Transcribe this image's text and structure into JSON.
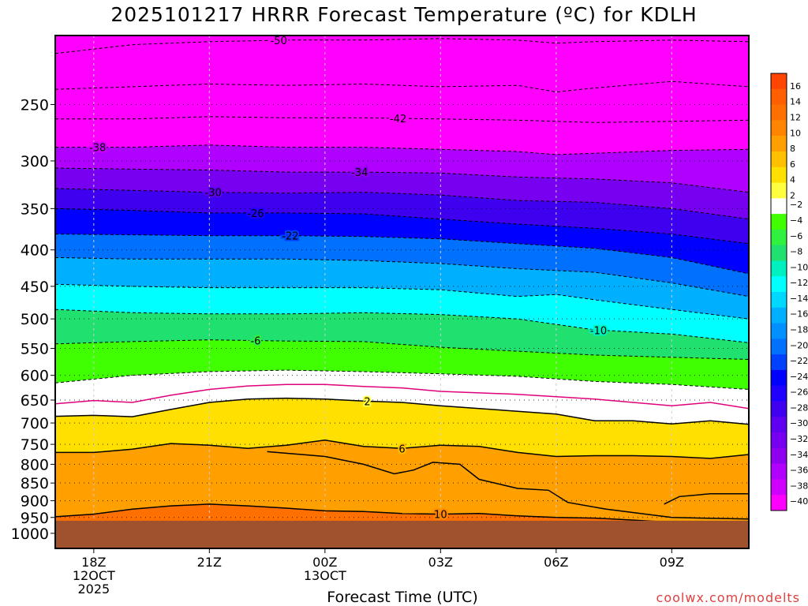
{
  "chart_data": {
    "type": "heatmap",
    "title": "2025101217 HRRR Forecast Temperature (ºC) for KDLH",
    "xlabel": "Forecast Time (UTC)",
    "ylabel": "",
    "credit": "coolwx.com/modelts",
    "x_ticks": [
      {
        "hour": 18,
        "lines": [
          "18Z",
          "12OCT",
          "2025"
        ]
      },
      {
        "hour": 21,
        "lines": [
          "21Z"
        ]
      },
      {
        "hour": 24,
        "lines": [
          "00Z",
          "13OCT"
        ]
      },
      {
        "hour": 27,
        "lines": [
          "03Z"
        ]
      },
      {
        "hour": 30,
        "lines": [
          "06Z"
        ]
      },
      {
        "hour": 33,
        "lines": [
          "09Z"
        ]
      }
    ],
    "xlim": [
      17,
      35
    ],
    "y_scale": "log-pressure",
    "ylim": [
      1000,
      200
    ],
    "y_ticks": [
      250,
      300,
      350,
      400,
      450,
      500,
      550,
      600,
      650,
      700,
      750,
      800,
      850,
      900,
      950,
      1000
    ],
    "colorbar": {
      "labels": [
        16,
        14,
        12,
        10,
        8,
        6,
        4,
        2,
        -2,
        -4,
        -6,
        -8,
        -10,
        -12,
        -14,
        -16,
        -18,
        -20,
        -22,
        -24,
        -26,
        -28,
        -30,
        -32,
        -34,
        -36,
        -38,
        -40
      ],
      "colors": [
        "#ff4500",
        "#ff5f00",
        "#ff7000",
        "#ff8500",
        "#ffa000",
        "#ffc000",
        "#ffe000",
        "#ffff40",
        "#ffffff",
        "#40ff00",
        "#30f040",
        "#20e070",
        "#00f0c0",
        "#00ffff",
        "#00d8ff",
        "#00b0ff",
        "#0090ff",
        "#0070ff",
        "#0040ff",
        "#0000ff",
        "#2000ff",
        "#4000f0",
        "#6000f0",
        "#7800f0",
        "#9000f0",
        "#b000ff",
        "#d000ff",
        "#ff00ff"
      ]
    },
    "isotherms": [
      {
        "value": -50,
        "label": "-50",
        "label_hour": 22.8,
        "points": [
          [
            17,
            212
          ],
          [
            19,
            206
          ],
          [
            21,
            204
          ],
          [
            23,
            203
          ],
          [
            25,
            203
          ],
          [
            27,
            202
          ],
          [
            29,
            203
          ],
          [
            30,
            205
          ],
          [
            31,
            204
          ],
          [
            33,
            203
          ],
          [
            35,
            204
          ]
        ]
      },
      {
        "value": -46,
        "label": "",
        "points": [
          [
            17,
            238
          ],
          [
            19,
            236
          ],
          [
            21,
            234
          ],
          [
            23,
            235
          ],
          [
            25,
            234
          ],
          [
            27,
            236
          ],
          [
            29,
            235
          ],
          [
            30,
            240
          ],
          [
            31,
            237
          ],
          [
            33,
            232
          ],
          [
            35,
            236
          ]
        ]
      },
      {
        "value": -42,
        "label": "-42",
        "label_hour": 25.9,
        "points": [
          [
            17,
            262
          ],
          [
            19,
            262
          ],
          [
            21,
            260
          ],
          [
            23,
            261
          ],
          [
            25,
            261
          ],
          [
            27,
            262
          ],
          [
            29,
            263
          ],
          [
            31,
            265
          ],
          [
            33,
            264
          ],
          [
            35,
            263
          ]
        ]
      },
      {
        "value": -38,
        "label": "-38",
        "label_hour": 18.1,
        "points": [
          [
            17,
            287
          ],
          [
            19,
            287
          ],
          [
            21,
            285
          ],
          [
            23,
            287
          ],
          [
            25,
            287
          ],
          [
            27,
            289
          ],
          [
            29,
            291
          ],
          [
            30,
            294
          ],
          [
            33,
            290
          ],
          [
            35,
            289
          ]
        ]
      },
      {
        "value": -34,
        "label": "-34",
        "label_hour": 24.9,
        "points": [
          [
            17,
            307
          ],
          [
            19,
            308
          ],
          [
            21,
            309
          ],
          [
            23,
            311
          ],
          [
            25,
            311
          ],
          [
            27,
            312
          ],
          [
            29,
            316
          ],
          [
            31,
            318
          ],
          [
            33,
            322
          ],
          [
            35,
            332
          ]
        ]
      },
      {
        "value": -30,
        "label": "-30",
        "label_hour": 21.1,
        "points": [
          [
            17,
            328
          ],
          [
            19,
            330
          ],
          [
            21,
            332
          ],
          [
            23,
            333
          ],
          [
            25,
            332
          ],
          [
            27,
            335
          ],
          [
            29,
            341
          ],
          [
            31,
            343
          ],
          [
            33,
            350
          ],
          [
            35,
            362
          ]
        ]
      },
      {
        "value": -26,
        "label": "-26",
        "label_hour": 22.2,
        "points": [
          [
            17,
            350
          ],
          [
            19,
            352
          ],
          [
            21,
            355
          ],
          [
            23,
            355
          ],
          [
            25,
            356
          ],
          [
            27,
            362
          ],
          [
            29,
            368
          ],
          [
            31,
            373
          ],
          [
            33,
            380
          ],
          [
            35,
            392
          ]
        ]
      },
      {
        "value": -22,
        "label": "-22",
        "label_hour": 23.1,
        "points": [
          [
            17,
            380
          ],
          [
            19,
            381
          ],
          [
            21,
            382
          ],
          [
            23,
            382
          ],
          [
            25,
            383
          ],
          [
            27,
            386
          ],
          [
            29,
            392
          ],
          [
            31,
            398
          ],
          [
            33,
            410
          ],
          [
            35,
            432
          ]
        ]
      },
      {
        "value": -18,
        "label": "",
        "points": [
          [
            17,
            410
          ],
          [
            19,
            412
          ],
          [
            21,
            412
          ],
          [
            23,
            412
          ],
          [
            25,
            414
          ],
          [
            27,
            418
          ],
          [
            29,
            425
          ],
          [
            31,
            430
          ],
          [
            33,
            445
          ],
          [
            35,
            465
          ]
        ]
      },
      {
        "value": -14,
        "label": "",
        "points": [
          [
            17,
            447
          ],
          [
            19,
            450
          ],
          [
            21,
            452
          ],
          [
            23,
            452
          ],
          [
            25,
            452
          ],
          [
            27,
            455
          ],
          [
            29,
            465
          ],
          [
            30,
            462
          ],
          [
            31,
            470
          ],
          [
            33,
            485
          ],
          [
            35,
            500
          ]
        ]
      },
      {
        "value": -10,
        "label": "-10",
        "label_hour": 31.1,
        "points": [
          [
            17,
            485
          ],
          [
            19,
            490
          ],
          [
            21,
            492
          ],
          [
            23,
            492
          ],
          [
            25,
            490
          ],
          [
            27,
            493
          ],
          [
            29,
            500
          ],
          [
            31,
            518
          ],
          [
            33,
            525
          ],
          [
            35,
            540
          ]
        ]
      },
      {
        "value": -6,
        "label": "-6",
        "label_hour": 22.2,
        "points": [
          [
            17,
            542
          ],
          [
            19,
            538
          ],
          [
            21,
            535
          ],
          [
            23,
            537
          ],
          [
            25,
            538
          ],
          [
            27,
            548
          ],
          [
            29,
            555
          ],
          [
            31,
            562
          ],
          [
            33,
            566
          ],
          [
            35,
            570
          ]
        ]
      },
      {
        "value": -2,
        "label": "",
        "points": [
          [
            17,
            615
          ],
          [
            19,
            600
          ],
          [
            21,
            593
          ],
          [
            23,
            590
          ],
          [
            25,
            593
          ],
          [
            27,
            597
          ],
          [
            29,
            602
          ],
          [
            31,
            612
          ],
          [
            33,
            618
          ],
          [
            35,
            628
          ]
        ]
      }
    ],
    "zero_line": {
      "value": 0,
      "points": [
        [
          17,
          658
        ],
        [
          18,
          651
        ],
        [
          19,
          655
        ],
        [
          20,
          640
        ],
        [
          21,
          628
        ],
        [
          22,
          621
        ],
        [
          23,
          618
        ],
        [
          24,
          618
        ],
        [
          25,
          622
        ],
        [
          26,
          625
        ],
        [
          27,
          632
        ],
        [
          29,
          638
        ],
        [
          31,
          648
        ],
        [
          33,
          662
        ],
        [
          34,
          655
        ],
        [
          35,
          668
        ]
      ]
    },
    "positive_isotherms": [
      {
        "value": 2,
        "label": "2",
        "label_hour": 25.1,
        "points": [
          [
            17,
            685
          ],
          [
            18,
            683
          ],
          [
            19,
            686
          ],
          [
            20,
            670
          ],
          [
            21,
            655
          ],
          [
            22,
            648
          ],
          [
            23,
            646
          ],
          [
            24,
            648
          ],
          [
            25,
            652
          ],
          [
            26,
            655
          ],
          [
            27,
            662
          ],
          [
            28,
            668
          ],
          [
            29,
            674
          ],
          [
            30,
            680
          ],
          [
            31,
            695
          ],
          [
            32,
            695
          ],
          [
            33,
            702
          ],
          [
            34,
            695
          ],
          [
            35,
            703
          ]
        ]
      },
      {
        "value": 6,
        "label": "6",
        "label_hour": 26.0,
        "points": [
          [
            17,
            770
          ],
          [
            18,
            770
          ],
          [
            19,
            762
          ],
          [
            20,
            748
          ],
          [
            21,
            752
          ],
          [
            22,
            760
          ],
          [
            23,
            752
          ],
          [
            24,
            740
          ],
          [
            25,
            755
          ],
          [
            26,
            760
          ],
          [
            27,
            752
          ],
          [
            28,
            755
          ],
          [
            29,
            770
          ],
          [
            30,
            780
          ],
          [
            31,
            778
          ],
          [
            32,
            778
          ],
          [
            33,
            780
          ],
          [
            34,
            785
          ],
          [
            35,
            775
          ]
        ]
      },
      {
        "value": 10,
        "label": "10",
        "label_hour": 27.0,
        "points": [
          [
            17,
            948
          ],
          [
            18,
            940
          ],
          [
            19,
            925
          ],
          [
            20,
            915
          ],
          [
            21,
            910
          ],
          [
            22,
            915
          ],
          [
            23,
            922
          ],
          [
            24,
            930
          ],
          [
            25,
            932
          ],
          [
            26,
            938
          ],
          [
            27,
            940
          ],
          [
            28,
            938
          ],
          [
            29,
            945
          ],
          [
            30,
            950
          ],
          [
            31,
            952
          ],
          [
            32,
            958
          ],
          [
            33,
            965
          ]
        ]
      },
      {
        "value": 10,
        "label": "",
        "points": [
          [
            22.5,
            768
          ],
          [
            24,
            780
          ],
          [
            25,
            800
          ],
          [
            25.8,
            825
          ],
          [
            26.3,
            815
          ],
          [
            26.8,
            795
          ],
          [
            27.5,
            800
          ],
          [
            28,
            840
          ],
          [
            29,
            865
          ],
          [
            29.8,
            870
          ],
          [
            30.3,
            905
          ],
          [
            31.3,
            925
          ],
          [
            33,
            950
          ],
          [
            35,
            955
          ]
        ]
      },
      {
        "value": 10,
        "label": "",
        "points": [
          [
            32.8,
            910
          ],
          [
            33.2,
            888
          ],
          [
            34,
            880
          ],
          [
            35,
            880
          ]
        ]
      }
    ],
    "surface_pressure": 960,
    "note_colors": {
      "ground": "#a0522d",
      "zero_line": "#e0007a",
      "contour": "#000000",
      "text": "#000000"
    }
  }
}
